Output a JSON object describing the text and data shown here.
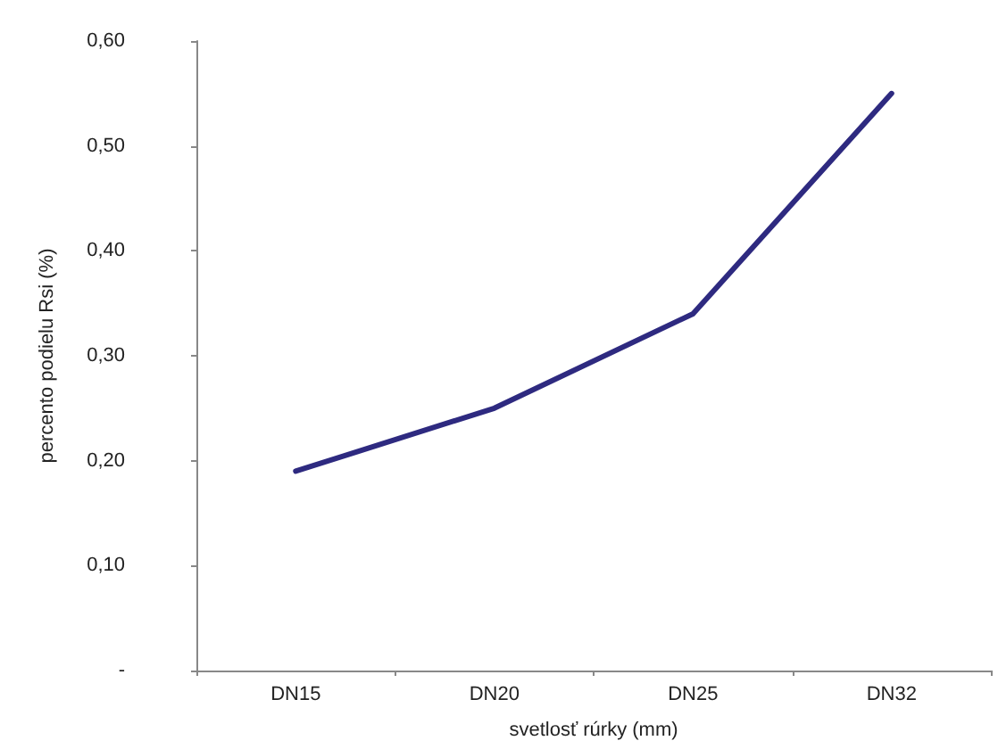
{
  "chart_data": {
    "type": "line",
    "xlabel": "svetlosť rúrky (mm)",
    "ylabel": "percento podielu Rsi (%)",
    "categories": [
      "DN15",
      "DN20",
      "DN25",
      "DN32"
    ],
    "series": [
      {
        "color": "#2e2a80",
        "values": [
          0.19,
          0.25,
          0.34,
          0.55
        ]
      }
    ],
    "ylim": [
      0,
      0.6
    ],
    "yticks": [
      {
        "value": 0,
        "label": "-"
      },
      {
        "value": 0.1,
        "label": "0,10"
      },
      {
        "value": 0.2,
        "label": "0,20"
      },
      {
        "value": 0.3,
        "label": "0,30"
      },
      {
        "value": 0.4,
        "label": "0,40"
      },
      {
        "value": 0.5,
        "label": "0,50"
      },
      {
        "value": 0.6,
        "label": "0,60"
      }
    ],
    "grid": false,
    "marker": "none",
    "line_style": "solid"
  }
}
